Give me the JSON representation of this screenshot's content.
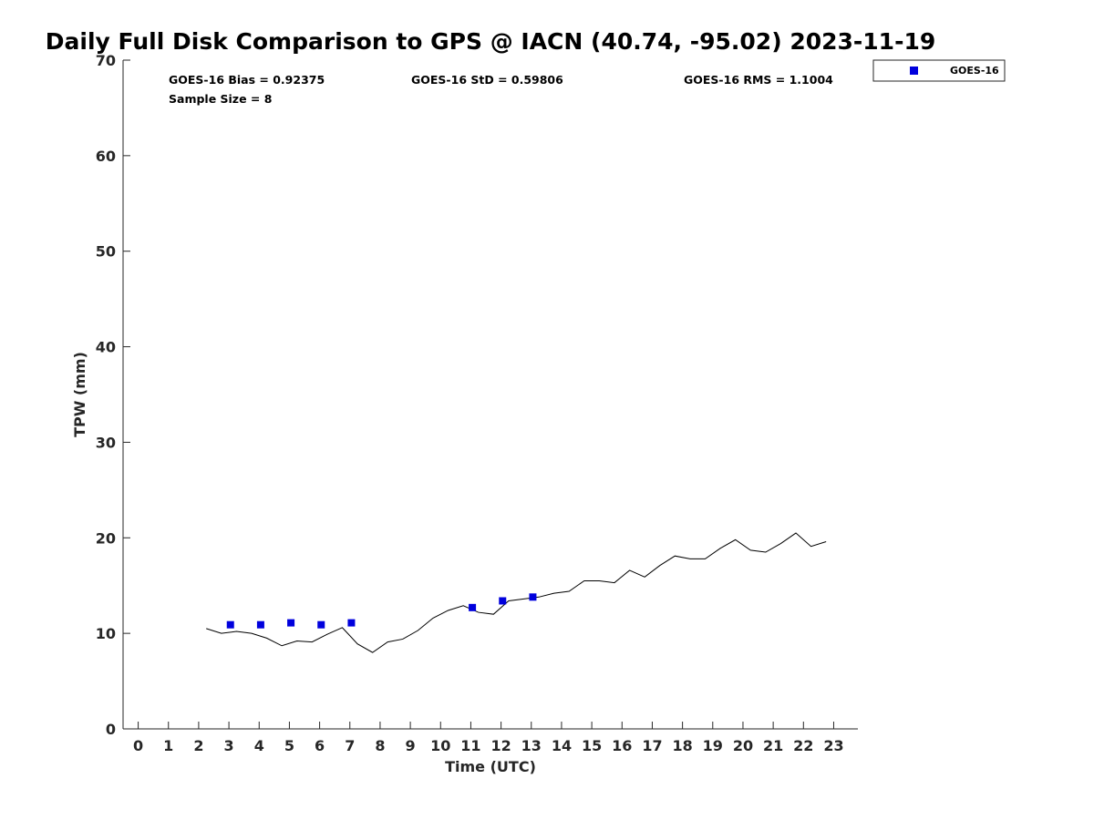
{
  "chart_data": {
    "type": "scatter",
    "title": "Daily Full Disk Comparison to GPS @ IACN (40.74, -95.02) 2023-11-19",
    "xlabel": "Time (UTC)",
    "ylabel": "TPW (mm)",
    "xlim": [
      -0.5,
      23.8
    ],
    "ylim": [
      0,
      70
    ],
    "xticks": [
      0,
      1,
      2,
      3,
      4,
      5,
      6,
      7,
      8,
      9,
      10,
      11,
      12,
      13,
      14,
      15,
      16,
      17,
      18,
      19,
      20,
      21,
      22,
      23
    ],
    "yticks": [
      0,
      10,
      20,
      30,
      40,
      50,
      60,
      70
    ],
    "grid": false,
    "legend_position": "top-right-outside",
    "stats": {
      "bias": "GOES-16 Bias = 0.92375",
      "std": "GOES-16 StD = 0.59806",
      "rms": "GOES-16 RMS = 1.1004",
      "sample": "Sample Size = 8"
    },
    "series": [
      {
        "name": "GOES-16",
        "kind": "scatter",
        "marker": "square",
        "color": "#0000dd",
        "x": [
          3.05,
          4.05,
          5.05,
          6.05,
          7.05,
          11.05,
          12.05,
          13.05
        ],
        "y": [
          10.9,
          10.9,
          11.1,
          10.9,
          11.1,
          12.7,
          13.4,
          13.8
        ]
      },
      {
        "kind": "line",
        "color": "#000000",
        "x": [
          2.25,
          2.75,
          3.25,
          3.75,
          4.25,
          4.75,
          5.25,
          5.75,
          6.25,
          6.75,
          7.25,
          7.75,
          8.25,
          8.75,
          9.25,
          9.75,
          10.25,
          10.75,
          11.25,
          11.75,
          12.25,
          12.75,
          13.25,
          13.75,
          14.25,
          14.75,
          15.25,
          15.75,
          16.25,
          16.75,
          17.25,
          17.75,
          18.25,
          18.75,
          19.25,
          19.75,
          20.25,
          20.75,
          21.25,
          21.75,
          22.25,
          22.75
        ],
        "y": [
          10.5,
          10.0,
          10.2,
          10.0,
          9.5,
          8.7,
          9.2,
          9.1,
          9.9,
          10.6,
          8.9,
          8.0,
          9.1,
          9.4,
          10.3,
          11.6,
          12.4,
          12.9,
          12.2,
          12.0,
          13.4,
          13.6,
          13.8,
          14.2,
          14.4,
          15.5,
          15.5,
          15.3,
          16.6,
          15.9,
          17.1,
          18.1,
          17.8,
          17.8,
          18.9,
          19.8,
          18.7,
          18.5,
          19.4,
          20.5,
          19.1,
          19.6
        ]
      }
    ]
  }
}
